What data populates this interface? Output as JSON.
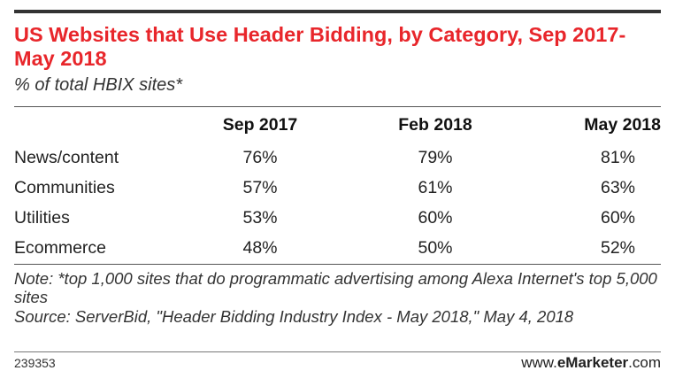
{
  "chart_data": {
    "type": "table",
    "title": "US Websites that Use Header Bidding, by Category, Sep 2017-May 2018",
    "subtitle": "% of total HBIX sites*",
    "columns": [
      "Sep 2017",
      "Feb 2018",
      "May 2018"
    ],
    "rows": [
      {
        "label": "News/content",
        "values": [
          "76%",
          "79%",
          "81%"
        ]
      },
      {
        "label": "Communities",
        "values": [
          "57%",
          "61%",
          "63%"
        ]
      },
      {
        "label": "Utilities",
        "values": [
          "53%",
          "60%",
          "60%"
        ]
      },
      {
        "label": "Ecommerce",
        "values": [
          "48%",
          "50%",
          "52%"
        ]
      }
    ],
    "note": "Note: *top 1,000 sites that do programmatic advertising among Alexa Internet's top 5,000 sites",
    "source": "Source: ServerBid, \"Header Bidding Industry Index - May 2018,\" May 4, 2018",
    "chart_id": "239353",
    "colors": {
      "title": "#e8262b",
      "rules": "#333333"
    }
  },
  "branding": {
    "prefix": "www.",
    "name": "eMarketer",
    "suffix": ".com"
  }
}
